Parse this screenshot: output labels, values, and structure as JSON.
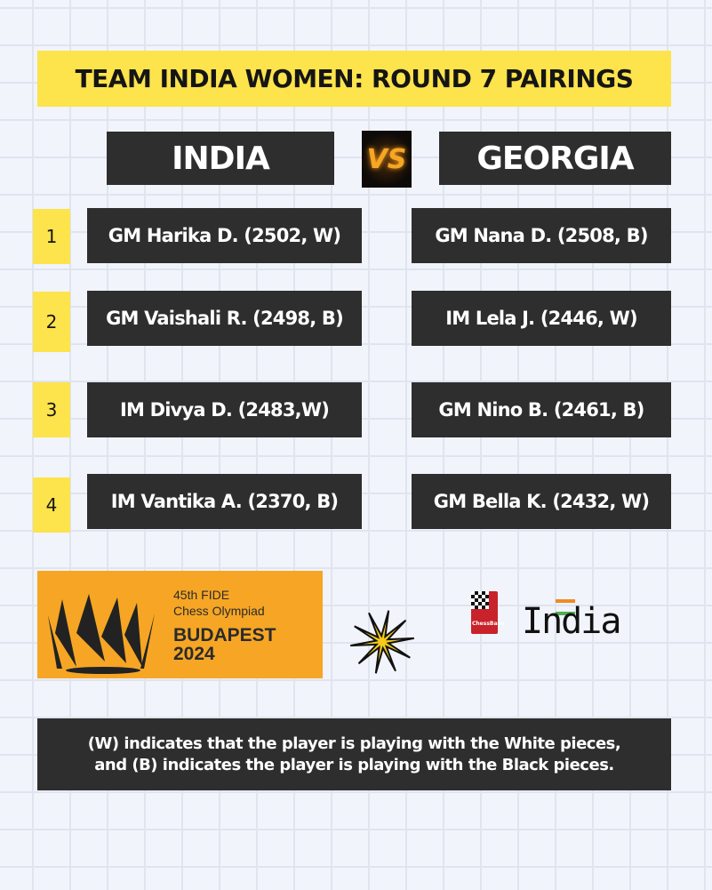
{
  "title": "TEAM INDIA WOMEN: ROUND 7 PAIRINGS",
  "teams": {
    "left": "INDIA",
    "vs": "VS",
    "right": "GEORGIA"
  },
  "boards": [
    {
      "number": "1",
      "india": "GM Harika D. (2502, W)",
      "georgia": "GM Nana D. (2508, B)"
    },
    {
      "number": "2",
      "india": "GM Vaishali R. (2498, B)",
      "georgia": "IM Lela J. (2446, W)"
    },
    {
      "number": "3",
      "india": "IM Divya D. (2483,W)",
      "georgia": "GM Nino B. (2461, B)"
    },
    {
      "number": "4",
      "india": "IM Vantika A. (2370, B)",
      "georgia": "GM Bella K. (2432, W)"
    }
  ],
  "olympiad_logo": {
    "line1": "45th FIDE",
    "line2": "Chess Olympiad",
    "line3": "BUDAPEST",
    "line4": "2024"
  },
  "chessbase_logo": {
    "badge": "ChessBase",
    "word": "India"
  },
  "footer": {
    "line1": "(W) indicates that the player is playing with the White pieces,",
    "line2": "and (B) indicates the player is playing with the Black pieces."
  },
  "colors": {
    "yellow": "#fde34c",
    "dark": "#2e2e2e",
    "orange": "#f6a624",
    "background": "#f1f4fb"
  }
}
